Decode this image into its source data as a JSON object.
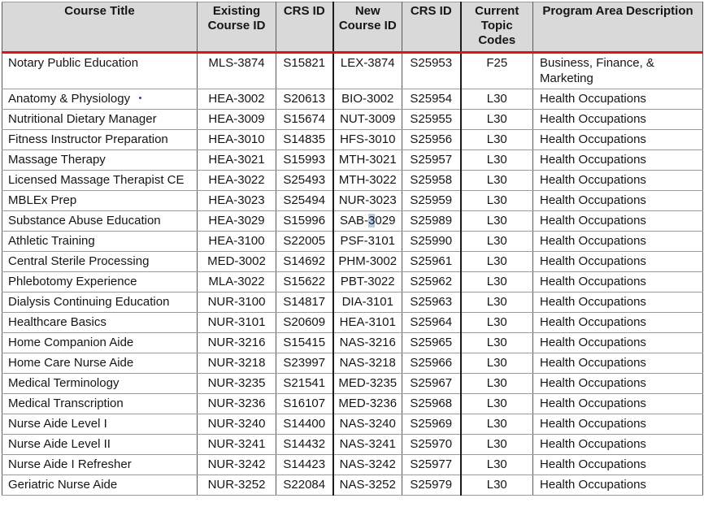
{
  "table": {
    "header": {
      "labels": [
        "Course Title",
        "Existing Course ID",
        "CRS ID",
        "New Course ID",
        "CRS ID",
        "Current Topic Codes",
        "Program Area Description"
      ],
      "background_color": "#d9d9d9",
      "underline_color": "#e01414"
    },
    "selection_highlight_color": "#b8cce4",
    "cursor_dot_color": "#3636cc",
    "rows": [
      {
        "title": "Notary Public Education",
        "existing_course_id": "MLS-3874",
        "crs_id": "S15821",
        "new_course_id": "LEX-3874",
        "new_crs_id": "S25953",
        "topic_code": "F25",
        "program_area": "Business, Finance, & Marketing"
      },
      {
        "title": "Anatomy & Physiology",
        "cursor_dot_after_title": true,
        "existing_course_id": "HEA-3002",
        "crs_id": "S20613",
        "new_course_id": "BIO-3002",
        "new_crs_id": "S25954",
        "topic_code": "L30",
        "program_area": "Health Occupations"
      },
      {
        "title": "Nutritional Dietary Manager",
        "existing_course_id": "HEA-3009",
        "crs_id": "S15674",
        "new_course_id": "NUT-3009",
        "new_crs_id": "S25955",
        "topic_code": "L30",
        "program_area": "Health Occupations"
      },
      {
        "title": "Fitness Instructor Preparation",
        "existing_course_id": "HEA-3010",
        "crs_id": "S14835",
        "new_course_id": "HFS-3010",
        "new_crs_id": "S25956",
        "topic_code": "L30",
        "program_area": "Health Occupations"
      },
      {
        "title": "Massage Therapy",
        "existing_course_id": "HEA-3021",
        "crs_id": "S15993",
        "new_course_id": "MTH-3021",
        "new_crs_id": "S25957",
        "topic_code": "L30",
        "program_area": "Health Occupations"
      },
      {
        "title": "Licensed Massage Therapist CE",
        "existing_course_id": "HEA-3022",
        "crs_id": "S25493",
        "new_course_id": "MTH-3022",
        "new_crs_id": "S25958",
        "topic_code": "L30",
        "program_area": "Health Occupations"
      },
      {
        "title": "MBLEx Prep",
        "existing_course_id": "HEA-3023",
        "crs_id": "S25494",
        "new_course_id": "NUR-3023",
        "new_crs_id": "S25959",
        "topic_code": "L30",
        "program_area": "Health Occupations"
      },
      {
        "title": "Substance Abuse Education",
        "existing_course_id": "HEA-3029",
        "crs_id": "S15996",
        "new_course_id": "SAB-3029",
        "new_course_id_selection": {
          "before": "SAB-",
          "selected": "3",
          "after": "029"
        },
        "new_crs_id": "S25989",
        "topic_code": "L30",
        "program_area": "Health Occupations"
      },
      {
        "title": "Athletic Training",
        "existing_course_id": "HEA-3100",
        "crs_id": "S22005",
        "new_course_id": "PSF-3101",
        "new_crs_id": "S25990",
        "topic_code": "L30",
        "program_area": "Health Occupations"
      },
      {
        "title": "Central Sterile Processing",
        "existing_course_id": "MED-3002",
        "crs_id": "S14692",
        "new_course_id": "PHM-3002",
        "new_crs_id": "S25961",
        "topic_code": "L30",
        "program_area": "Health Occupations"
      },
      {
        "title": "Phlebotomy Experience",
        "existing_course_id": "MLA-3022",
        "crs_id": "S15622",
        "new_course_id": "PBT-3022",
        "new_crs_id": "S25962",
        "topic_code": "L30",
        "program_area": "Health Occupations"
      },
      {
        "title": "Dialysis Continuing Education",
        "existing_course_id": "NUR-3100",
        "crs_id": "S14817",
        "new_course_id": "DIA-3101",
        "new_crs_id": "S25963",
        "topic_code": "L30",
        "program_area": "Health Occupations"
      },
      {
        "title": "Healthcare Basics",
        "existing_course_id": "NUR-3101",
        "crs_id": "S20609",
        "new_course_id": "HEA-3101",
        "new_crs_id": "S25964",
        "topic_code": "L30",
        "program_area": "Health Occupations"
      },
      {
        "title": "Home Companion Aide",
        "existing_course_id": "NUR-3216",
        "crs_id": "S15415",
        "new_course_id": "NAS-3216",
        "new_crs_id": "S25965",
        "topic_code": "L30",
        "program_area": "Health Occupations"
      },
      {
        "title": "Home Care Nurse Aide",
        "existing_course_id": "NUR-3218",
        "crs_id": "S23997",
        "new_course_id": "NAS-3218",
        "new_crs_id": "S25966",
        "topic_code": "L30",
        "program_area": "Health Occupations"
      },
      {
        "title": "Medical Terminology",
        "existing_course_id": "NUR-3235",
        "crs_id": "S21541",
        "new_course_id": "MED-3235",
        "new_crs_id": "S25967",
        "topic_code": "L30",
        "program_area": "Health Occupations"
      },
      {
        "title": "Medical Transcription",
        "existing_course_id": "NUR-3236",
        "crs_id": "S16107",
        "new_course_id": "MED-3236",
        "new_crs_id": "S25968",
        "topic_code": "L30",
        "program_area": "Health Occupations"
      },
      {
        "title": "Nurse Aide Level I",
        "existing_course_id": "NUR-3240",
        "crs_id": "S14400",
        "new_course_id": "NAS-3240",
        "new_crs_id": "S25969",
        "topic_code": "L30",
        "program_area": "Health Occupations"
      },
      {
        "title": "Nurse Aide Level II",
        "existing_course_id": "NUR-3241",
        "crs_id": "S14432",
        "new_course_id": "NAS-3241",
        "new_crs_id": "S25970",
        "topic_code": "L30",
        "program_area": "Health Occupations"
      },
      {
        "title": "Nurse Aide I Refresher",
        "existing_course_id": "NUR-3242",
        "crs_id": "S14423",
        "new_course_id": "NAS-3242",
        "new_crs_id": "S25977",
        "topic_code": "L30",
        "program_area": "Health Occupations"
      },
      {
        "title": "Geriatric Nurse Aide",
        "existing_course_id": "NUR-3252",
        "crs_id": "S22084",
        "new_course_id": "NAS-3252",
        "new_crs_id": "S25979",
        "topic_code": "L30",
        "program_area": "Health Occupations"
      }
    ]
  }
}
